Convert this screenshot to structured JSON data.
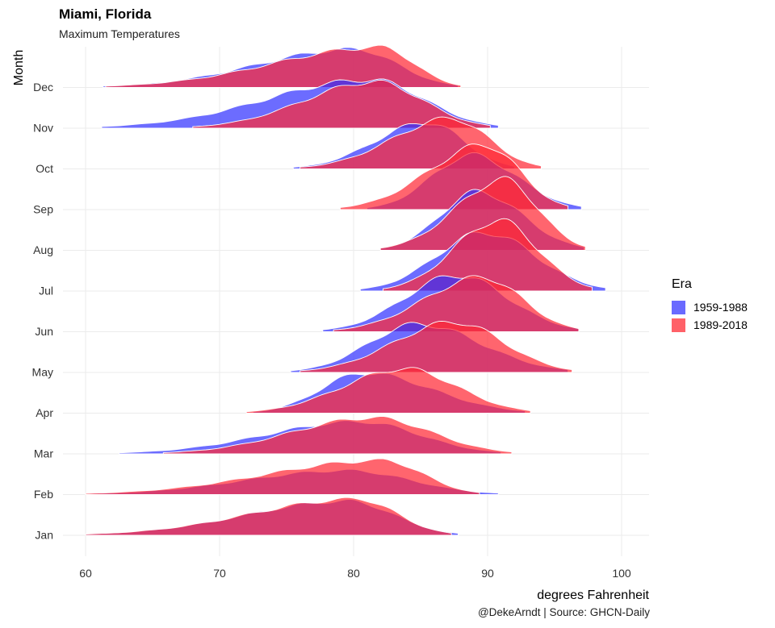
{
  "title": "Miami, Florida",
  "subtitle": "Maximum Temperatures",
  "caption": "@DekeArndt | Source: GHCN-Daily",
  "legend": {
    "title": "Era",
    "items": [
      {
        "label": "1959-1988",
        "color": "#3333ff"
      },
      {
        "label": "1989-2018",
        "color": "#ff2a36"
      }
    ]
  },
  "chart_data": {
    "type": "area",
    "title": "Miami, Florida",
    "subtitle": "Maximum Temperatures",
    "xlabel": "degrees Fahrenheit",
    "ylabel": "Month",
    "xlim": [
      58,
      102
    ],
    "x_ticks": [
      60,
      70,
      80,
      90,
      100
    ],
    "categories": [
      "Jan",
      "Feb",
      "Mar",
      "Apr",
      "May",
      "Jun",
      "Jul",
      "Aug",
      "Sep",
      "Oct",
      "Nov",
      "Dec"
    ],
    "grid": true,
    "legend_position": "right",
    "series": [
      {
        "name": "1959-1988",
        "color": "#3333ff",
        "ridges": [
          {
            "month": "Jan",
            "min": 60.0,
            "max": 87.8,
            "peak": 79.6,
            "height": 0.85
          },
          {
            "month": "Feb",
            "min": 60.0,
            "max": 90.8,
            "peak": 79.5,
            "height": 0.6
          },
          {
            "month": "Mar",
            "min": 62.5,
            "max": 91.0,
            "peak": 80.5,
            "height": 0.8
          },
          {
            "month": "Apr",
            "min": 72.5,
            "max": 92.8,
            "peak": 80.8,
            "height": 1.0
          },
          {
            "month": "May",
            "min": 75.3,
            "max": 96.0,
            "peak": 84.8,
            "height": 1.2
          },
          {
            "month": "Jun",
            "min": 77.7,
            "max": 96.8,
            "peak": 87.7,
            "height": 1.4
          },
          {
            "month": "Jul",
            "min": 80.5,
            "max": 98.8,
            "peak": 89.8,
            "height": 1.45
          },
          {
            "month": "Aug",
            "min": 82.0,
            "max": 97.2,
            "peak": 89.3,
            "height": 1.45
          },
          {
            "month": "Sep",
            "min": 81.0,
            "max": 97.0,
            "peak": 88.8,
            "height": 1.35
          },
          {
            "month": "Oct",
            "min": 75.5,
            "max": 92.0,
            "peak": 85.5,
            "height": 1.15
          },
          {
            "month": "Nov",
            "min": 61.2,
            "max": 90.8,
            "peak": 81.3,
            "height": 1.2
          },
          {
            "month": "Dec",
            "min": 61.3,
            "max": 87.8,
            "peak": 80.1,
            "height": 0.95
          }
        ]
      },
      {
        "name": "1989-2018",
        "color": "#ff2a36",
        "ridges": [
          {
            "month": "Jan",
            "min": 60.0,
            "max": 87.3,
            "peak": 80.3,
            "height": 0.9
          },
          {
            "month": "Feb",
            "min": 60.0,
            "max": 89.4,
            "peak": 82.2,
            "height": 0.85
          },
          {
            "month": "Mar",
            "min": 65.8,
            "max": 91.8,
            "peak": 81.5,
            "height": 0.9
          },
          {
            "month": "Apr",
            "min": 72.0,
            "max": 93.2,
            "peak": 83.8,
            "height": 1.1
          },
          {
            "month": "May",
            "min": 76.0,
            "max": 96.3,
            "peak": 87.5,
            "height": 1.25
          },
          {
            "month": "Jun",
            "min": 78.5,
            "max": 96.8,
            "peak": 89.6,
            "height": 1.35
          },
          {
            "month": "Jul",
            "min": 82.2,
            "max": 97.8,
            "peak": 90.8,
            "height": 1.75
          },
          {
            "month": "Aug",
            "min": 82.0,
            "max": 97.3,
            "peak": 91.2,
            "height": 1.75
          },
          {
            "month": "Sep",
            "min": 79.0,
            "max": 96.0,
            "peak": 89.8,
            "height": 1.6
          },
          {
            "month": "Oct",
            "min": 76.0,
            "max": 94.0,
            "peak": 87.3,
            "height": 1.25
          },
          {
            "month": "Nov",
            "min": 68.0,
            "max": 90.2,
            "peak": 81.6,
            "height": 1.15
          },
          {
            "month": "Dec",
            "min": 61.5,
            "max": 88.0,
            "peak": 82.0,
            "height": 1.0
          }
        ]
      }
    ]
  }
}
